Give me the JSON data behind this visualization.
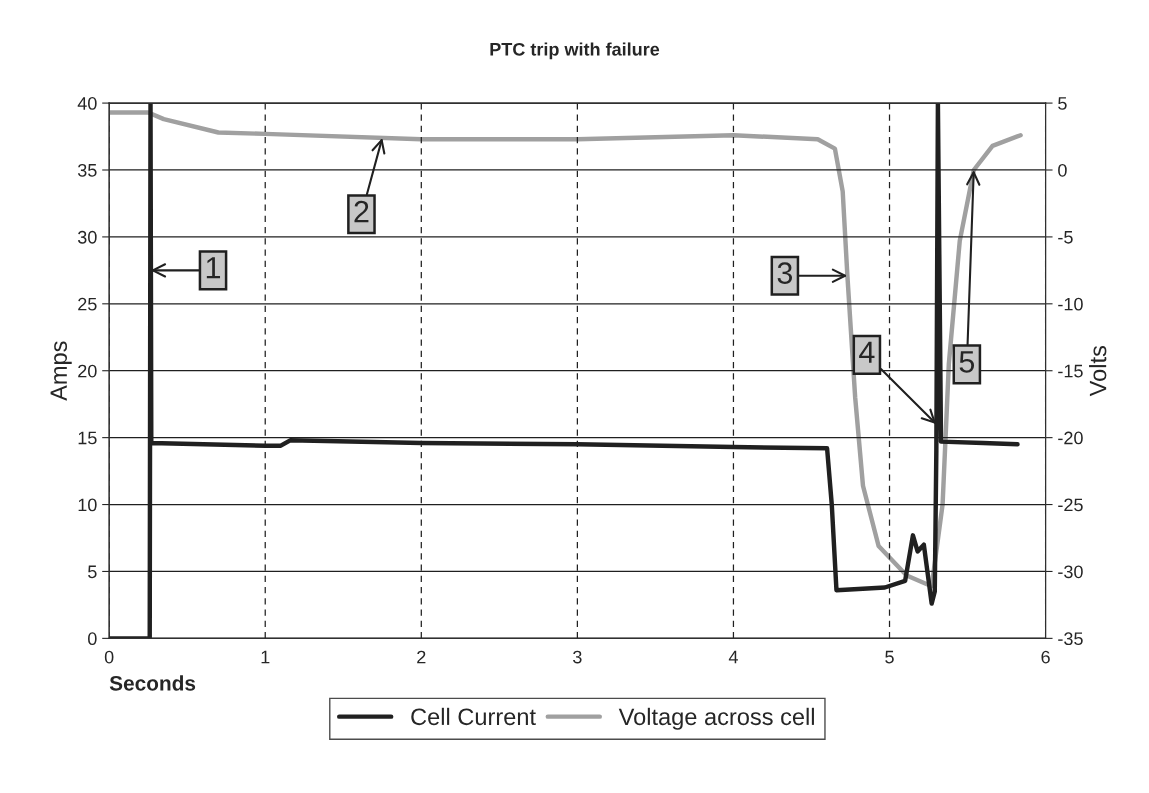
{
  "chart_data": {
    "type": "line",
    "title": "PTC trip with failure",
    "xlabel": "Seconds",
    "ylabel": "Amps",
    "y2label": "Volts",
    "xlim": [
      0,
      6
    ],
    "xticks": [
      0,
      1,
      2,
      3,
      4,
      5,
      6
    ],
    "ylim": [
      0,
      40
    ],
    "yticks": [
      0,
      5,
      10,
      15,
      20,
      25,
      30,
      35,
      40
    ],
    "y2lim": [
      -35,
      5
    ],
    "y2ticks": [
      -35,
      -30,
      -25,
      -20,
      -15,
      -10,
      -5,
      0,
      5
    ],
    "grid": true,
    "legend": "bottom",
    "series": [
      {
        "name": "Cell Current",
        "color": "#202020",
        "x": [
          0,
          0.25,
          0.26,
          0.265,
          0.27,
          1.0,
          1.1,
          1.16,
          2.0,
          3.0,
          4.0,
          4.6,
          4.63,
          4.66,
          4.97,
          5.1,
          5.15,
          5.18,
          5.22,
          5.27,
          5.29,
          5.3,
          5.31,
          5.33,
          5.6,
          5.82
        ],
        "values": [
          0,
          0,
          0,
          40,
          14.6,
          14.4,
          14.4,
          14.8,
          14.6,
          14.5,
          14.3,
          14.2,
          10,
          3.6,
          3.8,
          4.3,
          7.7,
          6.5,
          7.0,
          2.6,
          3.5,
          14.0,
          40,
          14.7,
          14.6,
          14.5
        ]
      },
      {
        "name": "Voltage across cell",
        "color": "#a0a0a0",
        "axis": "y2",
        "x": [
          0,
          0.25,
          0.35,
          0.7,
          1.0,
          2.0,
          3.0,
          4.0,
          4.54,
          4.65,
          4.7,
          4.73,
          4.78,
          4.83,
          4.93,
          5.11,
          5.27,
          5.34,
          5.38,
          5.45,
          5.54,
          5.66,
          5.84
        ],
        "values": [
          4.3,
          4.3,
          3.8,
          2.8,
          2.7,
          2.3,
          2.3,
          2.6,
          2.3,
          1.6,
          -1.6,
          -7.9,
          -17,
          -23.6,
          -28.1,
          -30.3,
          -31.1,
          -25,
          -14.5,
          -5.3,
          0,
          1.8,
          2.6
        ]
      }
    ],
    "annotations": [
      {
        "text": "1",
        "x": 0.265,
        "y": 27.5
      },
      {
        "text": "2",
        "x": 1.75,
        "y": 37.4
      },
      {
        "text": "3",
        "x": 4.73,
        "y": 27.1
      },
      {
        "text": "4",
        "x": 5.3,
        "y": 16
      },
      {
        "text": "5",
        "x": 5.54,
        "y": 35
      }
    ]
  }
}
